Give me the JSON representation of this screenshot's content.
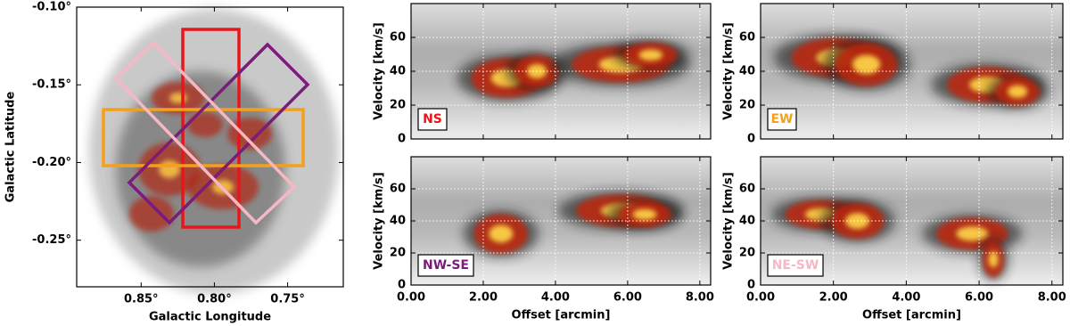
{
  "chart_data": [
    {
      "type": "map",
      "xlabel": "Galactic Longitude",
      "ylabel": "Galactic Latitude",
      "xlim": [
        0.894,
        0.712
      ],
      "ylim": [
        -0.28,
        -0.1
      ],
      "xticks": [
        {
          "value": 0.85,
          "label": "0.85°"
        },
        {
          "value": 0.8,
          "label": "0.80°"
        },
        {
          "value": 0.75,
          "label": "0.75°"
        }
      ],
      "yticks": [
        {
          "value": -0.1,
          "label": "-0.10°"
        },
        {
          "value": -0.15,
          "label": "-0.15°"
        },
        {
          "value": -0.2,
          "label": "-0.20°"
        },
        {
          "value": -0.25,
          "label": "-0.25°"
        }
      ]
    },
    {
      "type": "pv",
      "label": "NS",
      "color": "#e8161b",
      "ylabel": "Velocity [km/s]",
      "xlim": [
        0,
        8.3
      ],
      "ylim": [
        0,
        80
      ],
      "xticks": [
        0,
        2,
        4,
        6,
        8
      ],
      "yticks": [
        0,
        20,
        40,
        60
      ],
      "grid": true
    },
    {
      "type": "pv",
      "label": "EW",
      "color": "#f5a01a",
      "ylabel": "Velocity [km/s]",
      "xlim": [
        0,
        8.3
      ],
      "ylim": [
        0,
        80
      ],
      "xticks": [
        0,
        2,
        4,
        6,
        8
      ],
      "yticks": [
        0,
        20,
        40,
        60
      ],
      "grid": true
    },
    {
      "type": "pv",
      "label": "NW-SE",
      "color": "#7b1b7e",
      "ylabel": "Velocity [km/s]",
      "xlabel": "Offset [arcmin]",
      "xlim": [
        0,
        8.3
      ],
      "ylim": [
        0,
        80
      ],
      "xticks": [
        {
          "value": 0,
          "label": "0.00"
        },
        {
          "value": 2,
          "label": "2.00"
        },
        {
          "value": 4,
          "label": "4.00"
        },
        {
          "value": 6,
          "label": "6.00"
        },
        {
          "value": 8,
          "label": "8.00"
        }
      ],
      "yticks": [
        0,
        20,
        40,
        60
      ],
      "grid": true
    },
    {
      "type": "pv",
      "label": "NE-SW",
      "color": "#f6b8c3",
      "ylabel": "Velocity [km/s]",
      "xlabel": "Offset [arcmin]",
      "xlim": [
        0,
        8.3
      ],
      "ylim": [
        0,
        80
      ],
      "xticks": [
        {
          "value": 0,
          "label": "0.00"
        },
        {
          "value": 2,
          "label": "2.00"
        },
        {
          "value": 4,
          "label": "4.00"
        },
        {
          "value": 6,
          "label": "6.00"
        },
        {
          "value": 8,
          "label": "8.00"
        }
      ],
      "yticks": [
        0,
        20,
        40,
        60
      ],
      "grid": true
    }
  ]
}
